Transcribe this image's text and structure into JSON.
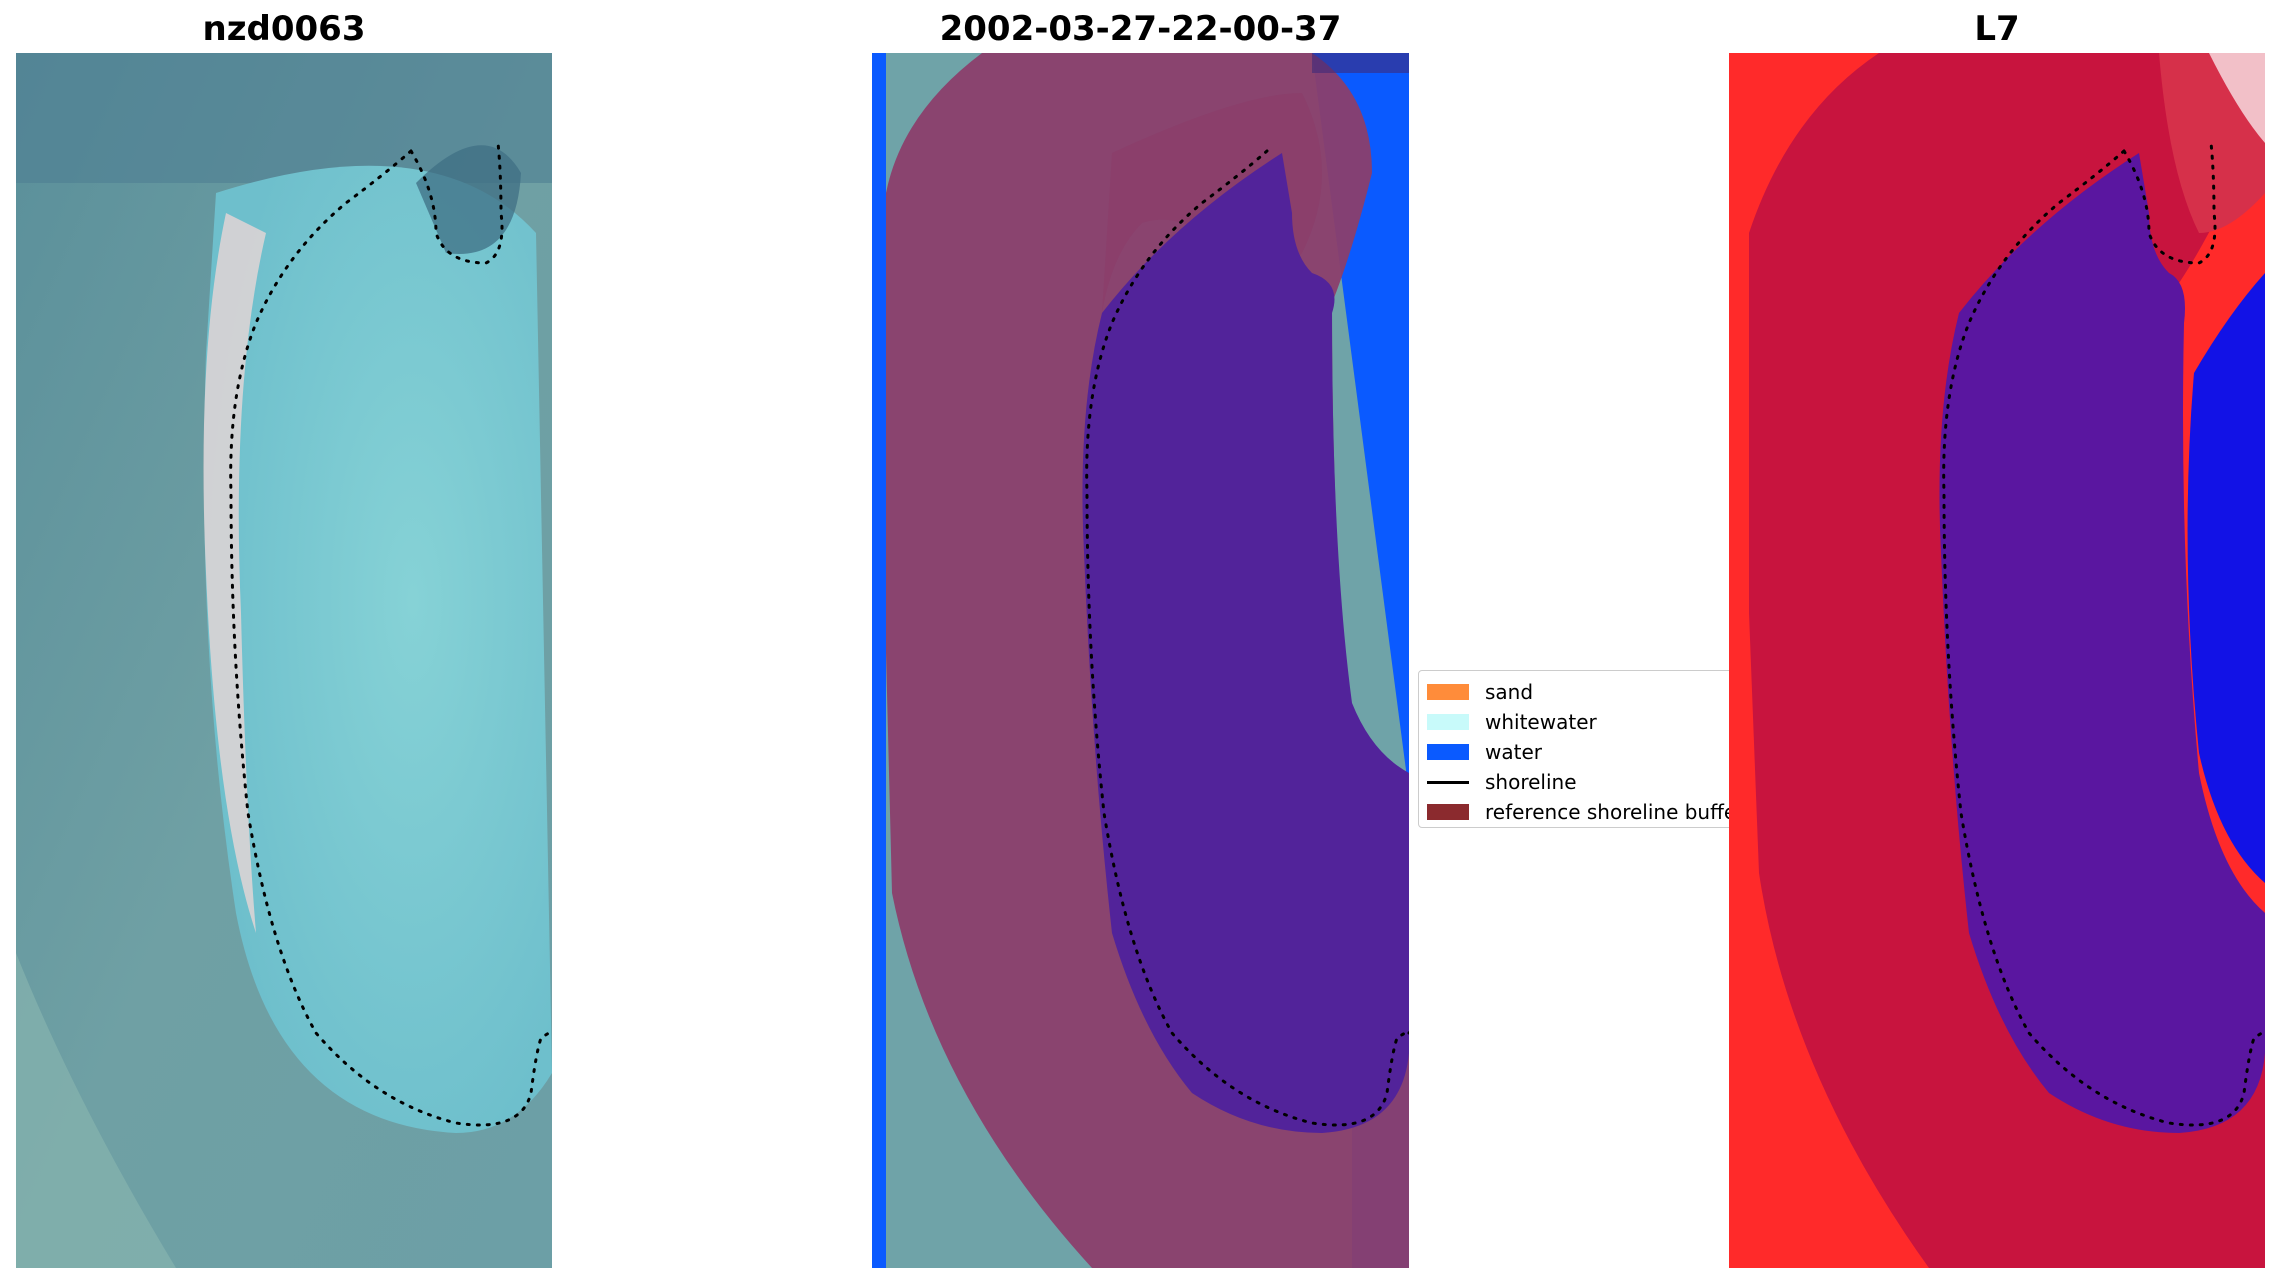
{
  "panels": {
    "left": {
      "title": "nzd0063"
    },
    "middle": {
      "title": "2002-03-27-22-00-37"
    },
    "right": {
      "title": "L7"
    }
  },
  "legend": {
    "items": [
      {
        "label": "sand",
        "type": "patch",
        "color": "#ff8c3a"
      },
      {
        "label": "whitewater",
        "type": "patch",
        "color": "#c8fafa"
      },
      {
        "label": "water",
        "type": "patch",
        "color": "#0a5aff"
      },
      {
        "label": "shoreline",
        "type": "line",
        "color": "#000000"
      },
      {
        "label": "reference shoreline buffer",
        "type": "patch",
        "color": "#8b2a2e"
      }
    ]
  },
  "colors": {
    "rgb_base": "#6fa8b0",
    "lagoon": "#7cc6cf",
    "classified_water": "#0a5aff",
    "buffer_overlay": "#8b2a5c",
    "lagoon_classified": "#52239a",
    "ndwi_land": "#e0143c",
    "ndwi_water": "#1010e8",
    "ndwi_lagoon": "#5a16a0"
  }
}
